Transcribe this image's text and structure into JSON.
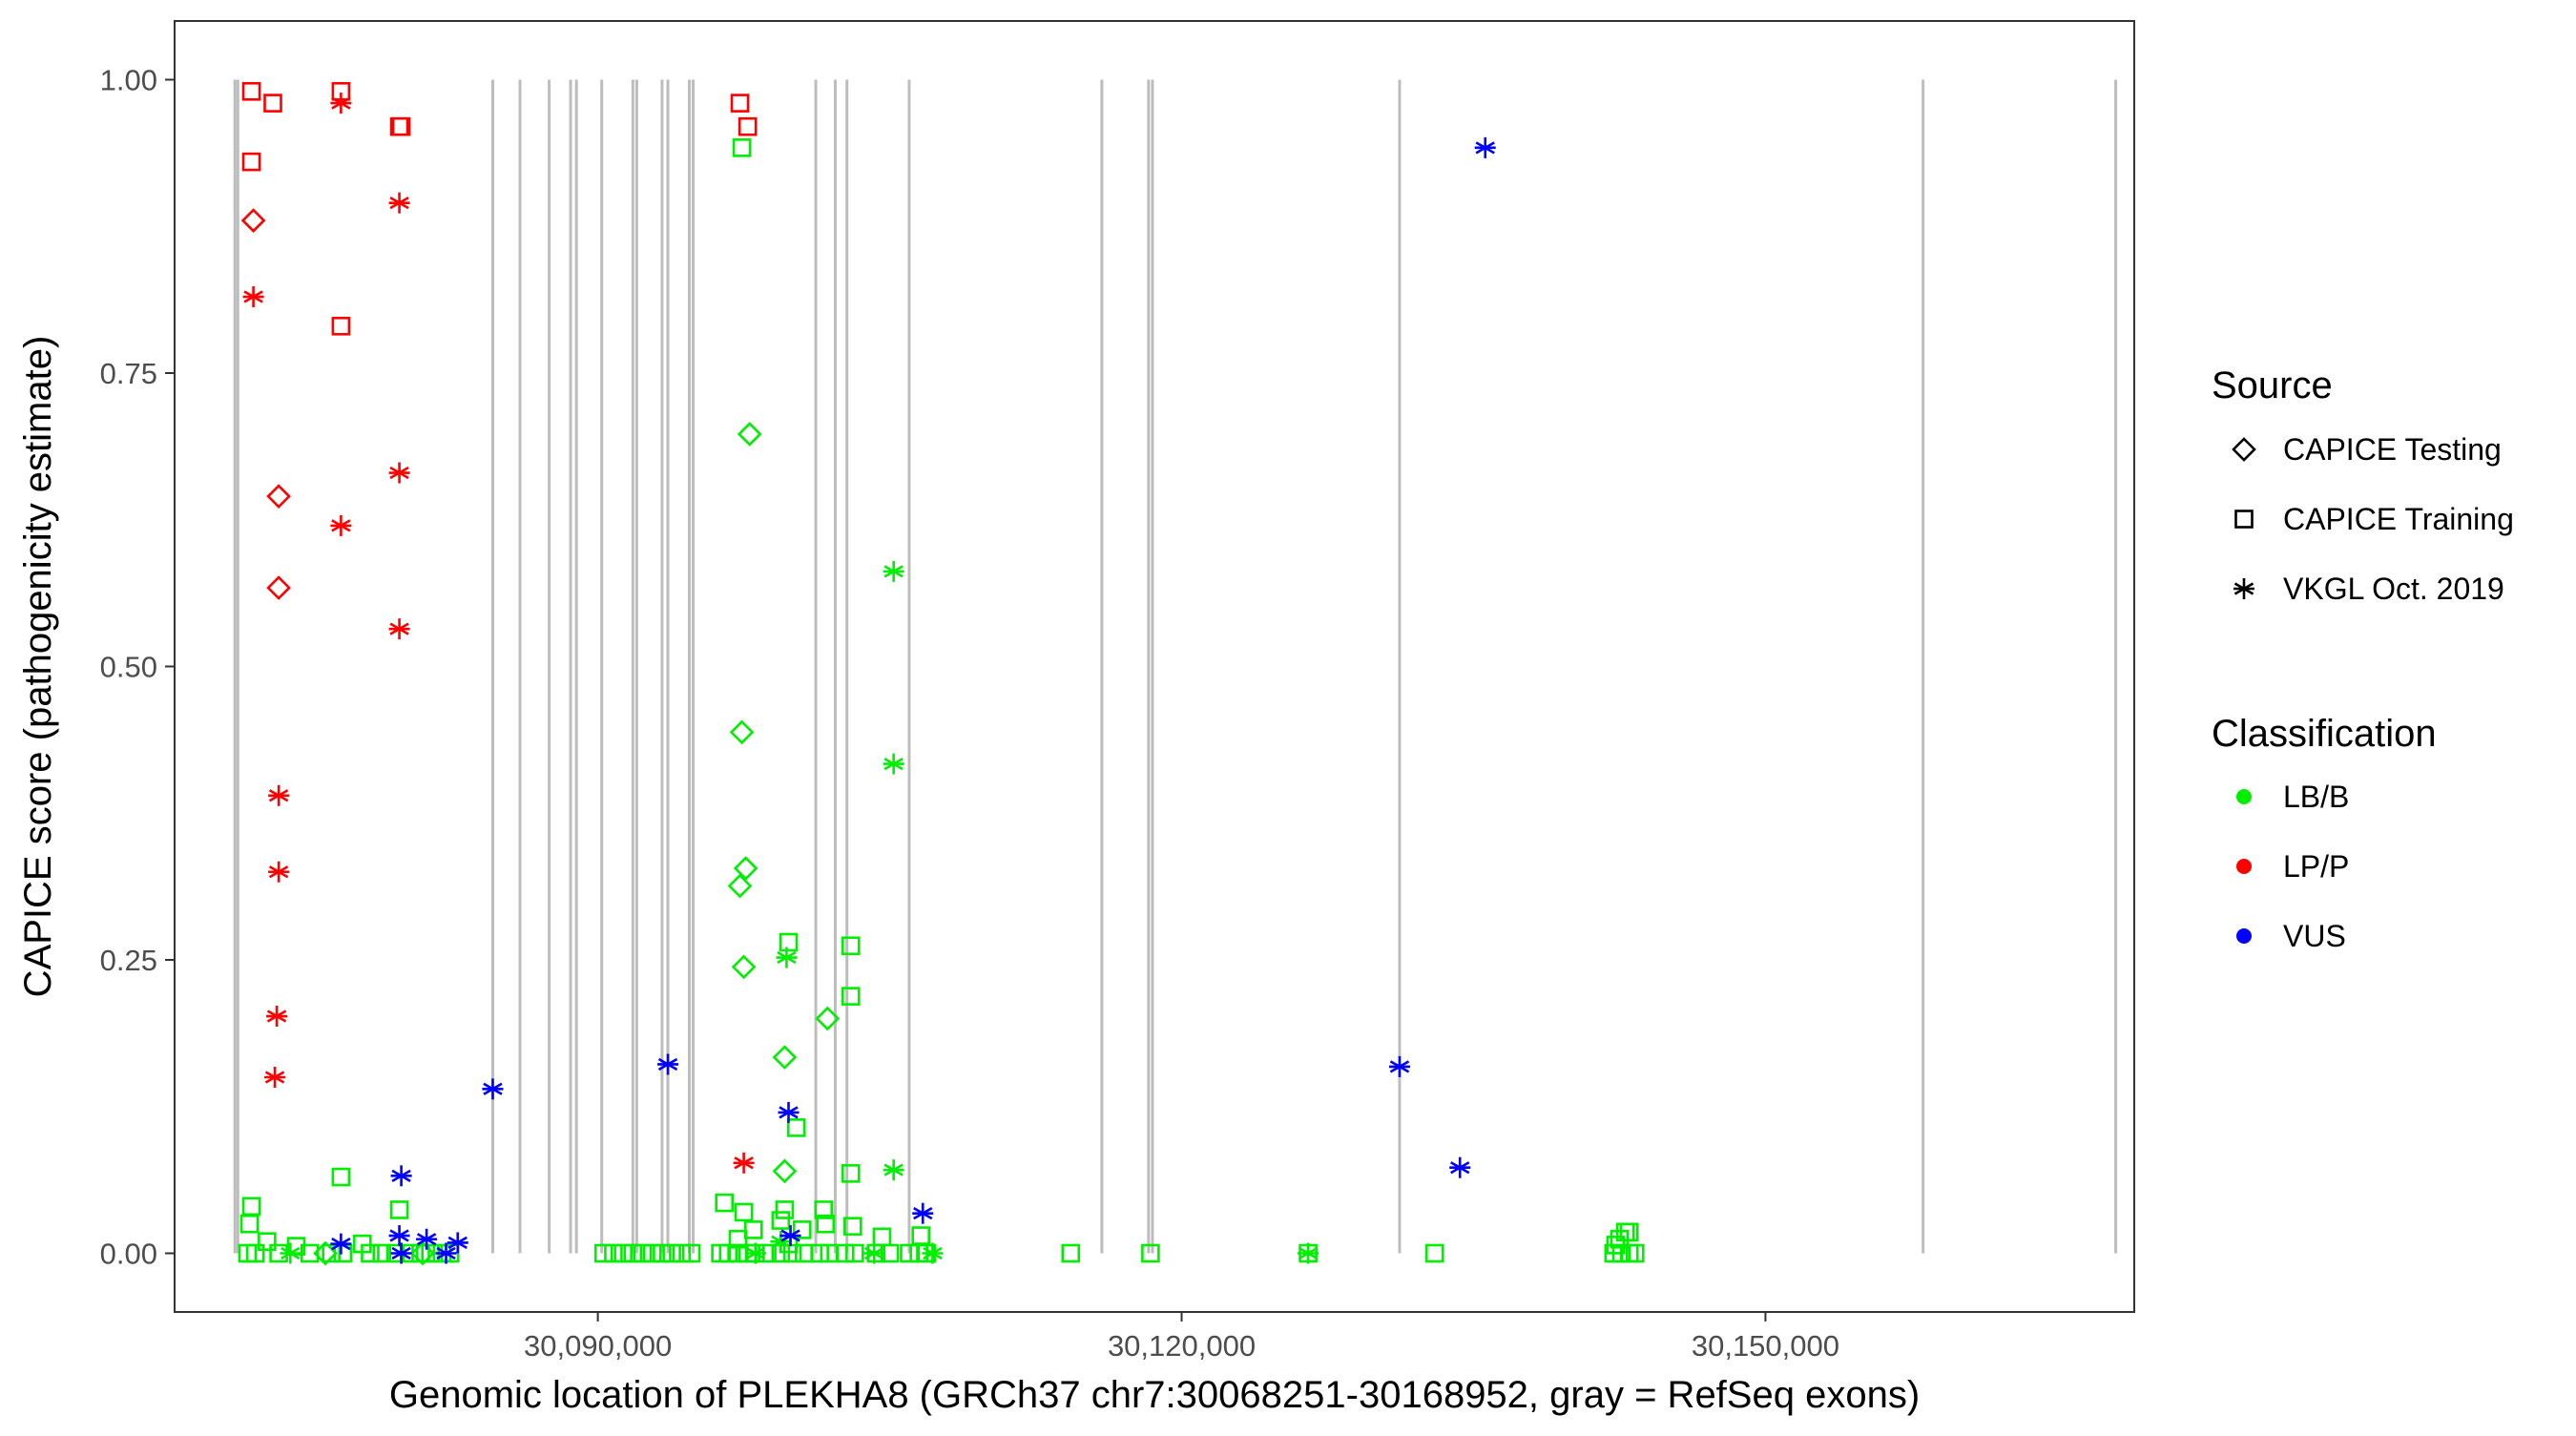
{
  "chart_data": {
    "type": "scatter",
    "title": "",
    "xlabel": "Genomic location of PLEKHA8 (GRCh37 chr7:30068251-30168952, gray = RefSeq exons)",
    "ylabel": "CAPICE score (pathogenicity estimate)",
    "xlim": [
      30068251,
      30168952
    ],
    "ylim": [
      -0.05,
      1.05
    ],
    "x_ticks": [
      30090000,
      30120000,
      30150000
    ],
    "x_tick_labels": [
      "30,090,000",
      "30,120,000",
      "30,150,000"
    ],
    "y_ticks": [
      0,
      0.25,
      0.5,
      0.75,
      1.0
    ],
    "y_tick_labels": [
      "0.00",
      "0.25",
      "0.50",
      "0.75",
      "1.00"
    ],
    "grid": false,
    "exons": [
      30071350,
      30071500,
      30084600,
      30086000,
      30087500,
      30088600,
      30088900,
      30090200,
      30091800,
      30092000,
      30093300,
      30093600,
      30094700,
      30094900,
      30101200,
      30102200,
      30102800,
      30106000,
      30115900,
      30118300,
      30118500,
      30131200,
      30158100,
      30168000
    ],
    "legend": {
      "placement": "right",
      "source_title": "Source",
      "source_items": [
        {
          "label": "CAPICE Testing",
          "shape": "diamond"
        },
        {
          "label": "CAPICE Training",
          "shape": "square"
        },
        {
          "label": "VKGL Oct. 2019",
          "shape": "asterisk"
        }
      ],
      "class_title": "Classification",
      "class_items": [
        {
          "label": "LB/B",
          "color": "#00ee00"
        },
        {
          "label": "LP/P",
          "color": "#ff0000"
        },
        {
          "label": "VUS",
          "color": "#0000ff"
        }
      ]
    },
    "series": [
      {
        "source": "CAPICE Training",
        "shape": "square",
        "class": "LP/P",
        "color": "#ff0000",
        "points": [
          [
            30072200,
            0.99
          ],
          [
            30073300,
            0.98
          ],
          [
            30072200,
            0.93
          ],
          [
            30076800,
            0.99
          ],
          [
            30076800,
            0.79
          ],
          [
            30079800,
            0.96
          ],
          [
            30079900,
            0.96
          ],
          [
            30097300,
            0.98
          ],
          [
            30097700,
            0.96
          ]
        ]
      },
      {
        "source": "CAPICE Testing",
        "shape": "diamond",
        "class": "LP/P",
        "color": "#ff0000",
        "points": [
          [
            30072300,
            0.88
          ],
          [
            30073600,
            0.645
          ],
          [
            30073600,
            0.567
          ]
        ]
      },
      {
        "source": "VKGL Oct. 2019",
        "shape": "asterisk",
        "class": "LP/P",
        "color": "#ff0000",
        "points": [
          [
            30076800,
            0.98
          ],
          [
            30079800,
            0.895
          ],
          [
            30072300,
            0.815
          ],
          [
            30079800,
            0.665
          ],
          [
            30076800,
            0.62
          ],
          [
            30079800,
            0.532
          ],
          [
            30073600,
            0.39
          ],
          [
            30073600,
            0.325
          ],
          [
            30073500,
            0.202
          ],
          [
            30073400,
            0.15
          ],
          [
            30097500,
            0.077
          ]
        ]
      },
      {
        "source": "CAPICE Training",
        "shape": "square",
        "class": "LB/B",
        "color": "#00ee00",
        "points": [
          [
            30097400,
            0.942
          ],
          [
            30099800,
            0.265
          ],
          [
            30103000,
            0.262
          ],
          [
            30103000,
            0.219
          ],
          [
            30100200,
            0.107
          ],
          [
            30076800,
            0.065
          ],
          [
            30103000,
            0.068
          ],
          [
            30096500,
            0.043
          ],
          [
            30097500,
            0.035
          ],
          [
            30101600,
            0.037
          ],
          [
            30099600,
            0.037
          ],
          [
            30072200,
            0.04
          ],
          [
            30079800,
            0.037
          ],
          [
            30072100,
            0.025
          ],
          [
            30101700,
            0.025
          ],
          [
            30099400,
            0.028
          ],
          [
            30100500,
            0.02
          ],
          [
            30103100,
            0.023
          ],
          [
            30098000,
            0.02
          ],
          [
            30073000,
            0.01
          ],
          [
            30077900,
            0.008
          ],
          [
            30097200,
            0.012
          ],
          [
            30104600,
            0.014
          ],
          [
            30106600,
            0.015
          ],
          [
            30142500,
            0.012
          ],
          [
            30142800,
            0.018
          ],
          [
            30143000,
            0.018
          ],
          [
            30142300,
            0.007
          ],
          [
            30074500,
            0.006
          ],
          [
            30099800,
            0.008
          ],
          [
            30114300,
            0
          ],
          [
            30118400,
            0
          ],
          [
            30126500,
            0
          ],
          [
            30133000,
            0
          ],
          [
            30072000,
            0
          ],
          [
            30072400,
            0
          ],
          [
            30073600,
            0
          ],
          [
            30075200,
            0
          ],
          [
            30076300,
            0
          ],
          [
            30076900,
            0
          ],
          [
            30078300,
            0
          ],
          [
            30078900,
            0
          ],
          [
            30079600,
            0
          ],
          [
            30080300,
            0
          ],
          [
            30080900,
            0
          ],
          [
            30081400,
            0
          ],
          [
            30082000,
            0
          ],
          [
            30082400,
            0
          ],
          [
            30090300,
            0
          ],
          [
            30090800,
            0
          ],
          [
            30091300,
            0
          ],
          [
            30091800,
            0
          ],
          [
            30092300,
            0
          ],
          [
            30092800,
            0
          ],
          [
            30093300,
            0
          ],
          [
            30093800,
            0
          ],
          [
            30094300,
            0
          ],
          [
            30094800,
            0
          ],
          [
            30096300,
            0
          ],
          [
            30096700,
            0
          ],
          [
            30097200,
            0
          ],
          [
            30097700,
            0
          ],
          [
            30098100,
            0
          ],
          [
            30098700,
            0
          ],
          [
            30099400,
            0
          ],
          [
            30100000,
            0
          ],
          [
            30100600,
            0
          ],
          [
            30101400,
            0
          ],
          [
            30101900,
            0
          ],
          [
            30102700,
            0
          ],
          [
            30103200,
            0
          ],
          [
            30104300,
            0
          ],
          [
            30105000,
            0
          ],
          [
            30106000,
            0
          ],
          [
            30106500,
            0
          ],
          [
            30106900,
            0
          ],
          [
            30142200,
            0
          ],
          [
            30142600,
            0
          ],
          [
            30143000,
            0
          ],
          [
            30143300,
            0
          ]
        ]
      },
      {
        "source": "CAPICE Testing",
        "shape": "diamond",
        "class": "LB/B",
        "color": "#00ee00",
        "points": [
          [
            30097800,
            0.698
          ],
          [
            30097400,
            0.444
          ],
          [
            30097600,
            0.328
          ],
          [
            30097300,
            0.313
          ],
          [
            30097500,
            0.244
          ],
          [
            30101800,
            0.2
          ],
          [
            30099600,
            0.167
          ],
          [
            30099600,
            0.07
          ],
          [
            30076000,
            0
          ],
          [
            30081000,
            0
          ]
        ]
      },
      {
        "source": "VKGL Oct. 2019",
        "shape": "asterisk",
        "class": "LB/B",
        "color": "#00ee00",
        "points": [
          [
            30105200,
            0.581
          ],
          [
            30105200,
            0.417
          ],
          [
            30099700,
            0.252
          ],
          [
            30105200,
            0.071
          ],
          [
            30099400,
            0.01
          ],
          [
            30074200,
            0
          ],
          [
            30098100,
            0
          ],
          [
            30104200,
            0
          ],
          [
            30107200,
            0
          ],
          [
            30126500,
            0
          ]
        ]
      },
      {
        "source": "VKGL Oct. 2019",
        "shape": "asterisk",
        "class": "VUS",
        "color": "#0000ff",
        "points": [
          [
            30135600,
            0.942
          ],
          [
            30093600,
            0.161
          ],
          [
            30131200,
            0.159
          ],
          [
            30084600,
            0.14
          ],
          [
            30099800,
            0.12
          ],
          [
            30134300,
            0.073
          ],
          [
            30079900,
            0.066
          ],
          [
            30106700,
            0.034
          ],
          [
            30079800,
            0.015
          ],
          [
            30099900,
            0.015
          ],
          [
            30081200,
            0.012
          ],
          [
            30082800,
            0.009
          ],
          [
            30076800,
            0.008
          ],
          [
            30079900,
            0
          ],
          [
            30082200,
            0
          ]
        ]
      }
    ]
  }
}
